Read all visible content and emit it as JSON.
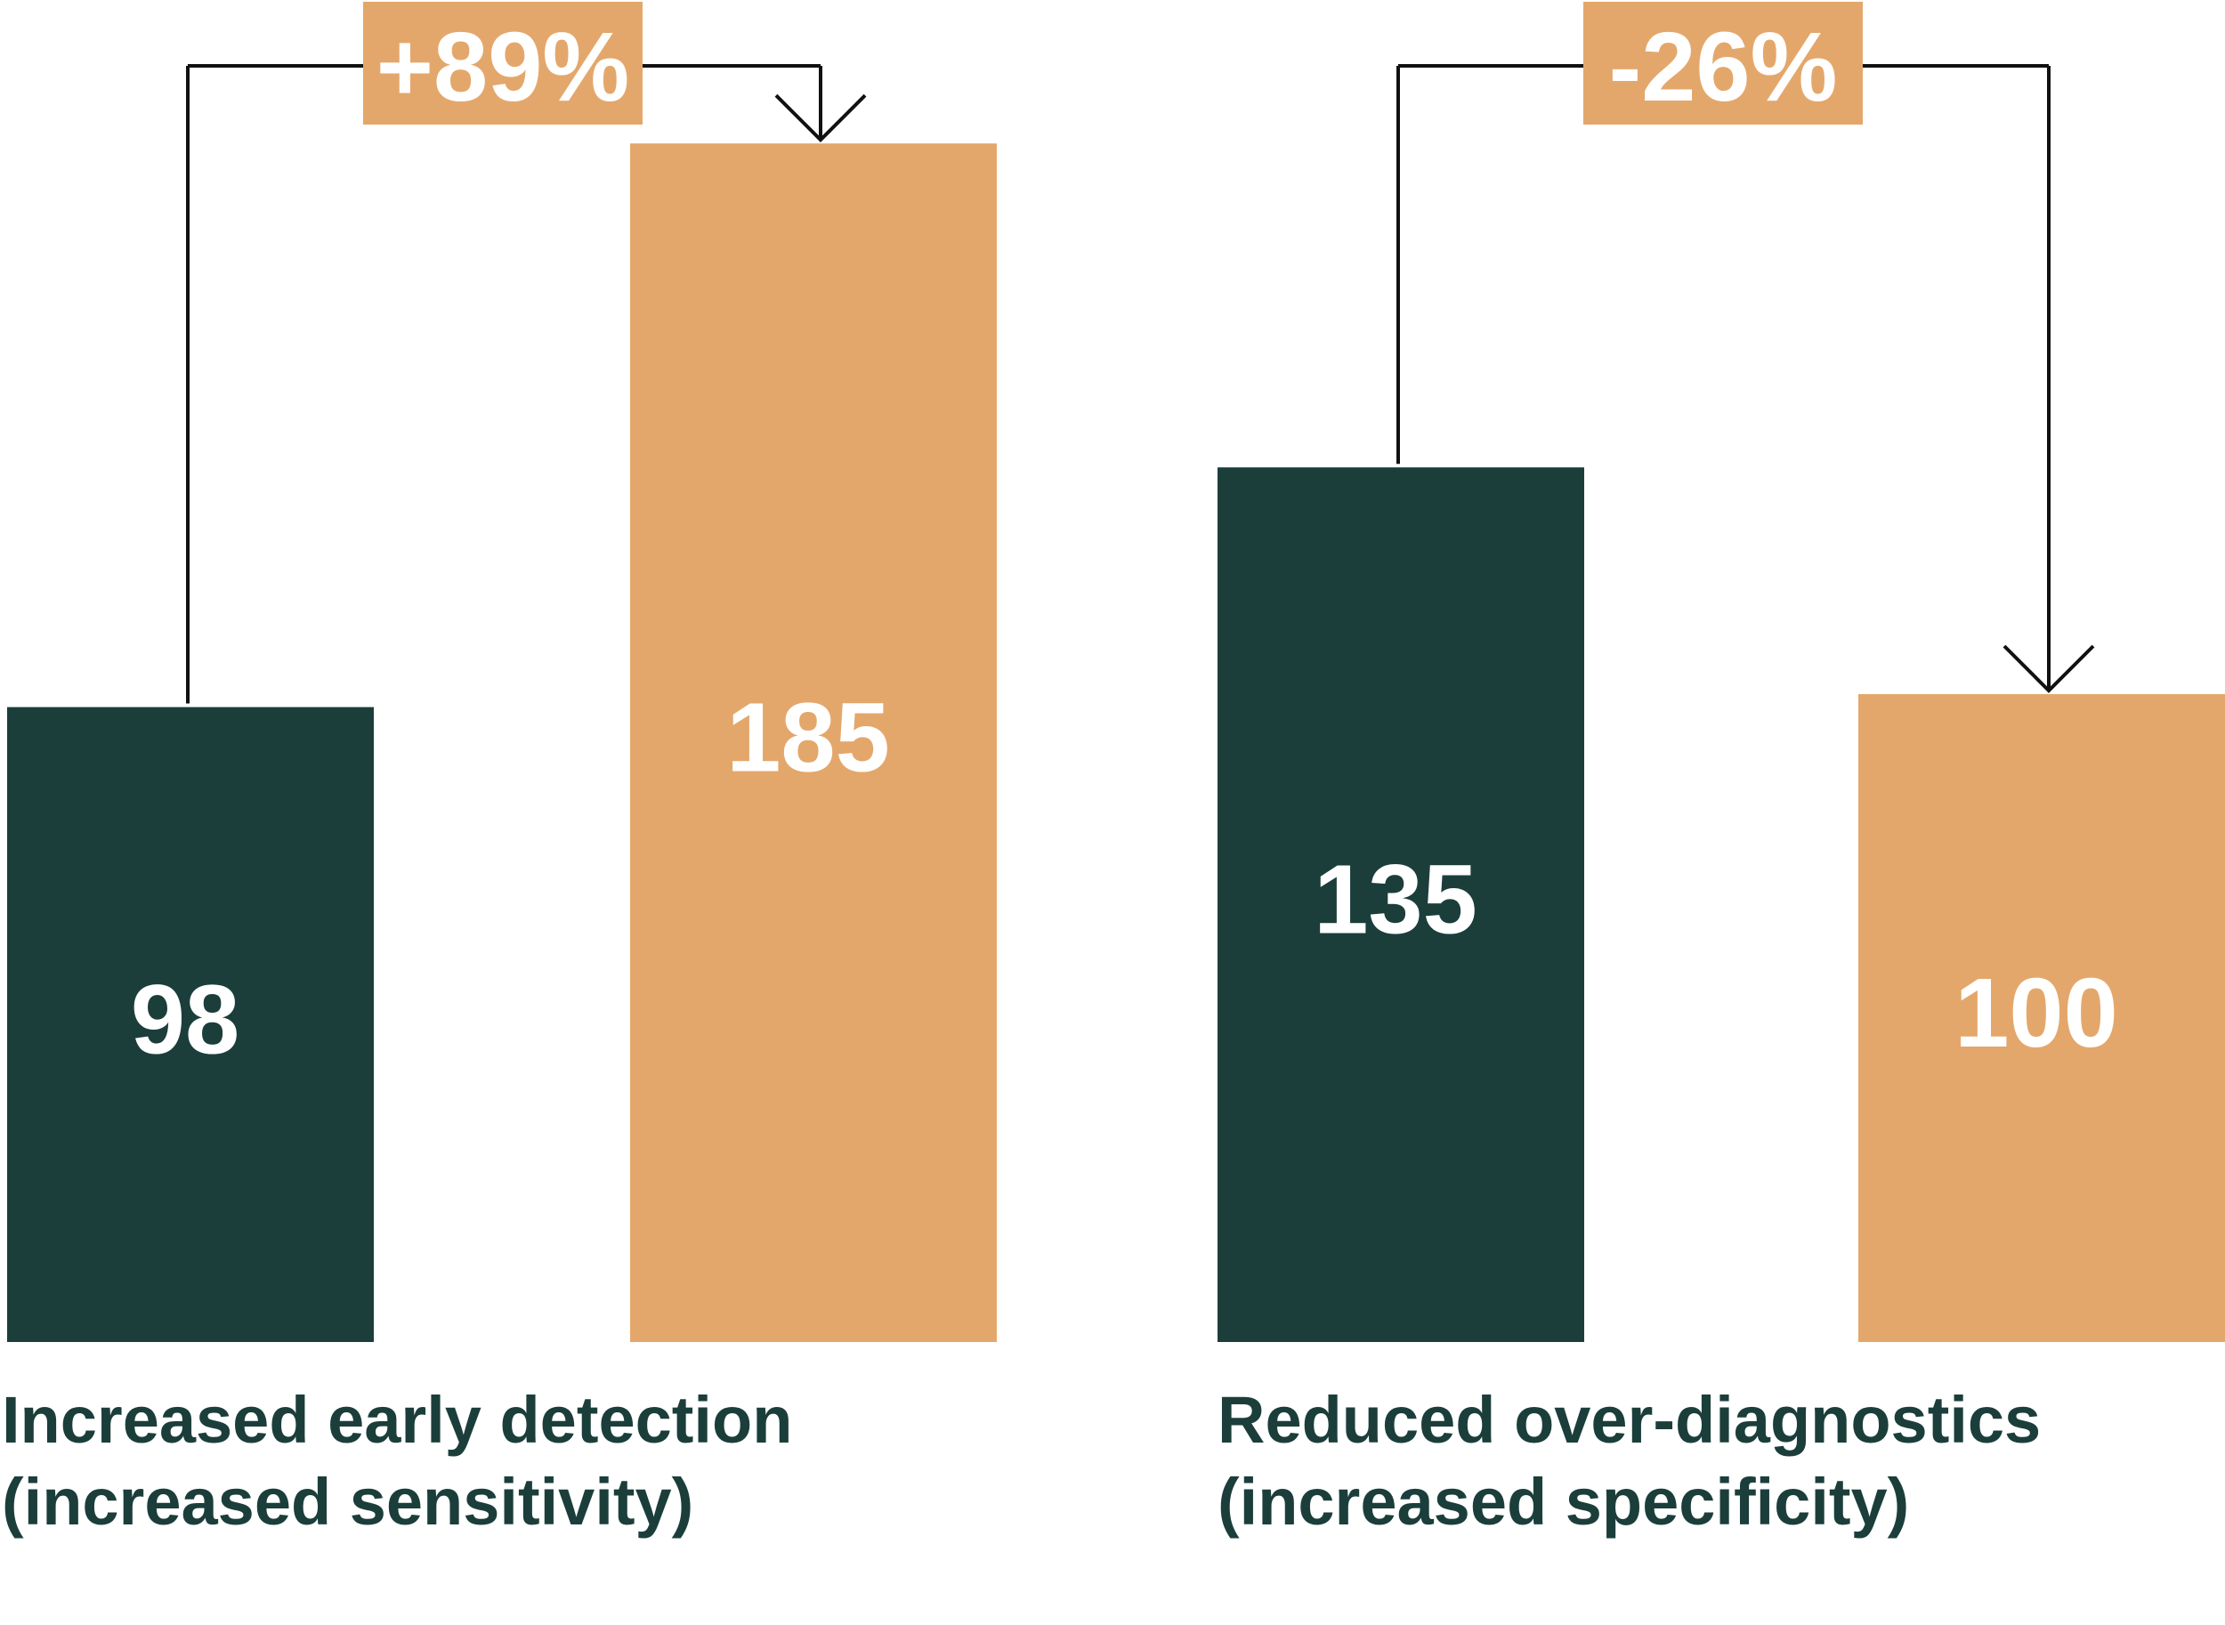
{
  "colors": {
    "before": "#1b3e3b",
    "after": "#e4a76b",
    "connector": "#111111",
    "label": "#ffffff",
    "caption": "#1b3e3b"
  },
  "chart_data": [
    {
      "type": "bar",
      "title": "",
      "categories": [
        "",
        ""
      ],
      "values": [
        98,
        185
      ],
      "change_label": "+89%",
      "caption": [
        "Increased early detection",
        "(increased sensitivity)"
      ]
    },
    {
      "type": "bar",
      "title": "",
      "categories": [
        "",
        ""
      ],
      "values": [
        135,
        100
      ],
      "change_label": "-26%",
      "caption": [
        "Reduced over-diagnostics",
        "(increased specificity)"
      ]
    }
  ]
}
